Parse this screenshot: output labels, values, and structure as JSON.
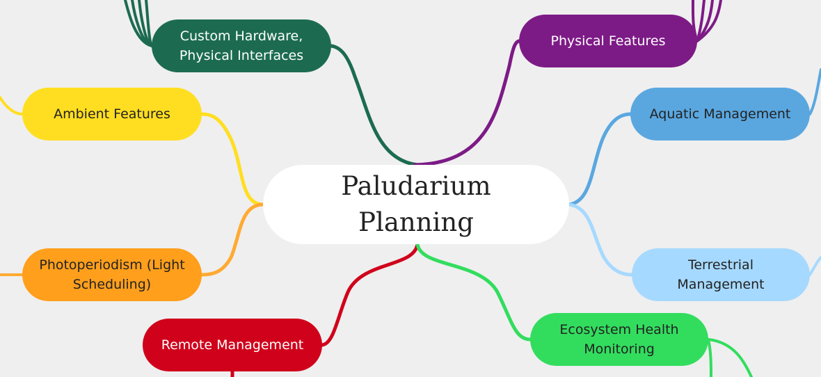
{
  "central": {
    "label": "Paludarium\nPlanning"
  },
  "branches": [
    {
      "key": "custom",
      "label": "Custom Hardware,\nPhysical Interfaces",
      "fill": "#1c6b50",
      "text": "#ffffff",
      "edge": "#1c6b50"
    },
    {
      "key": "physical",
      "label": "Physical Features",
      "fill": "#7d1b86",
      "text": "#ffffff",
      "edge": "#7d1b86"
    },
    {
      "key": "ambient",
      "label": "Ambient Features",
      "fill": "#ffde21",
      "text": "#222222",
      "edge": "#ffde21"
    },
    {
      "key": "aquatic",
      "label": "Aquatic Management",
      "fill": "#5aa7e0",
      "text": "#222222",
      "edge": "#5aa7e0"
    },
    {
      "key": "photo",
      "label": "Photoperiodism (Light\nScheduling)",
      "fill": "#ff9f1c",
      "text": "#222222",
      "edge": "#ffaa33"
    },
    {
      "key": "terr",
      "label": "Terrestrial\nManagement",
      "fill": "#a6d9ff",
      "text": "#222222",
      "edge": "#a6d9ff"
    },
    {
      "key": "remote",
      "label": "Remote Management",
      "fill": "#d0021b",
      "text": "#ffffff",
      "edge": "#d0021b"
    },
    {
      "key": "eco",
      "label": "Ecosystem Health\nMonitoring",
      "fill": "#32dd5e",
      "text": "#222222",
      "edge": "#32dd5e"
    }
  ]
}
